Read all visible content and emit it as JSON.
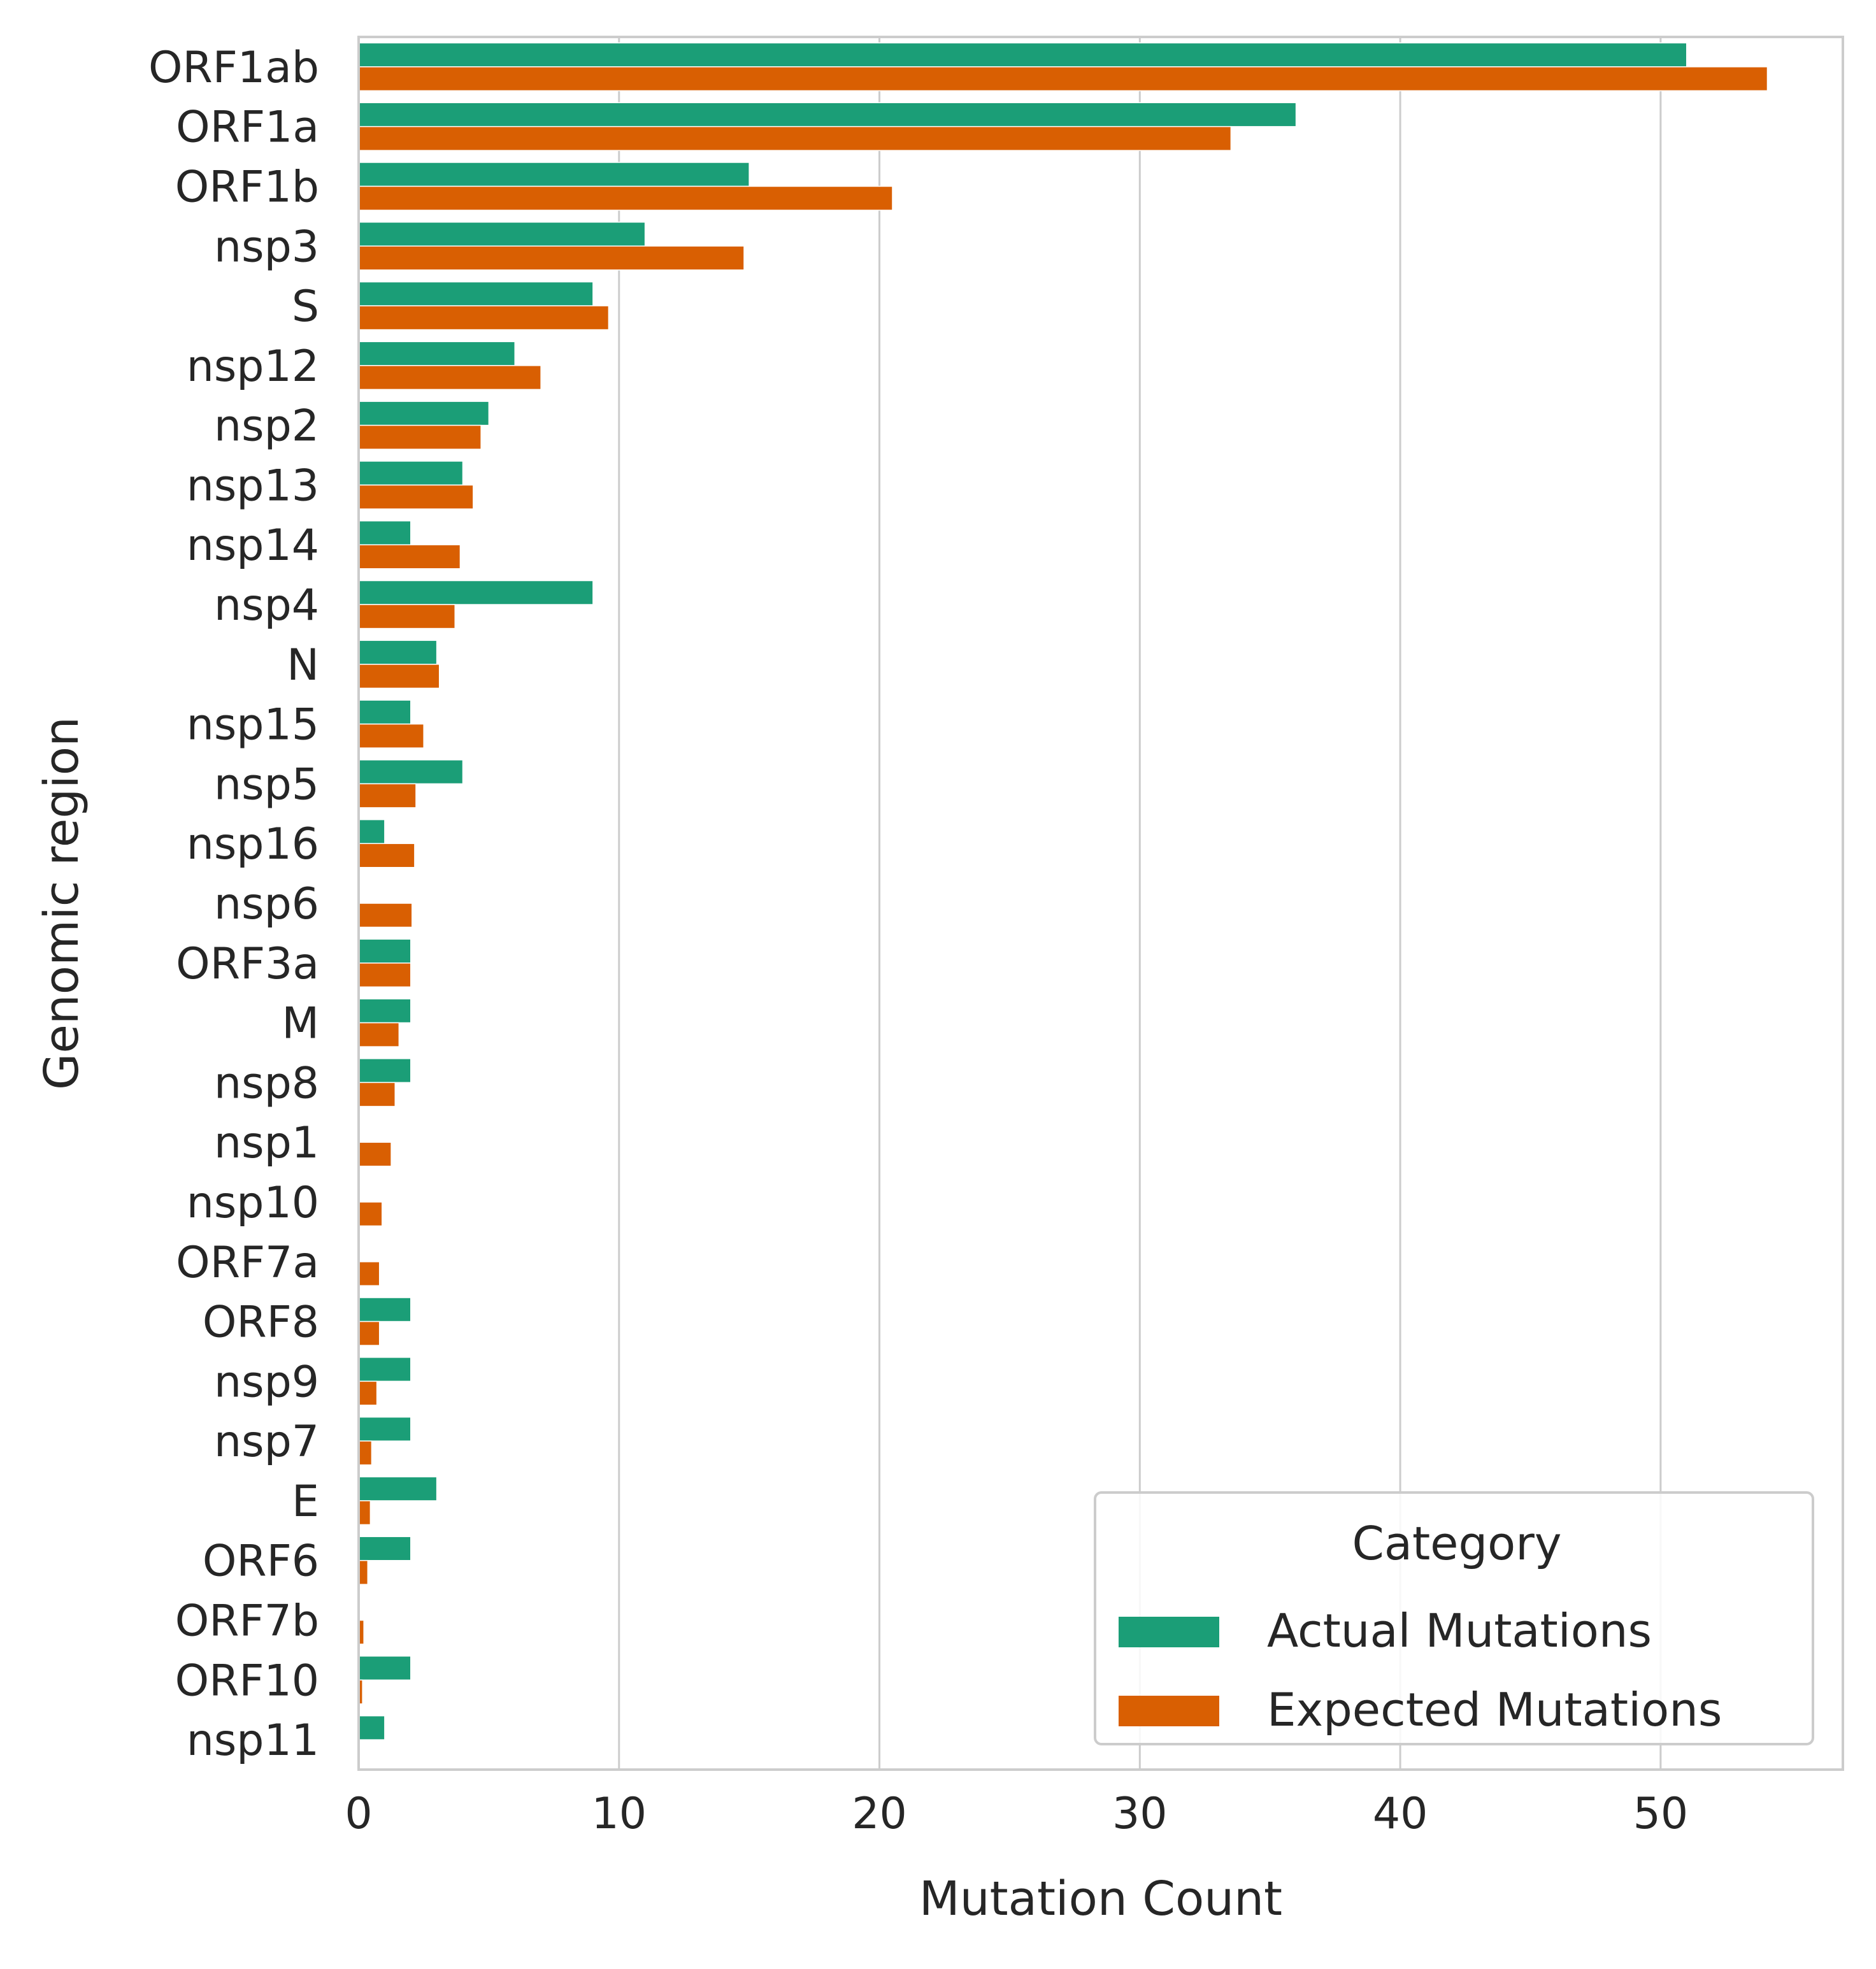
{
  "chart_data": {
    "type": "bar",
    "orientation": "horizontal",
    "xlabel": "Mutation Count",
    "ylabel": "Genomic region",
    "xlim": [
      0,
      57
    ],
    "xticks": [
      0,
      10,
      20,
      30,
      40,
      50
    ],
    "grid": "vertical",
    "legend": {
      "title": "Category",
      "placement": "lower-right"
    },
    "categories": [
      "ORF1ab",
      "ORF1a",
      "ORF1b",
      "nsp3",
      "S",
      "nsp12",
      "nsp2",
      "nsp13",
      "nsp14",
      "nsp4",
      "N",
      "nsp15",
      "nsp5",
      "nsp16",
      "nsp6",
      "ORF3a",
      "M",
      "nsp8",
      "nsp1",
      "nsp10",
      "ORF7a",
      "ORF8",
      "nsp9",
      "nsp7",
      "E",
      "ORF6",
      "ORF7b",
      "ORF10",
      "nsp11"
    ],
    "series": [
      {
        "name": "Actual Mutations",
        "color": "#1b9e77",
        "values": [
          51,
          36,
          15,
          11,
          9,
          6,
          5,
          4,
          2,
          9,
          3,
          2,
          4,
          1,
          0,
          2,
          2,
          2,
          0,
          0,
          0,
          2,
          2,
          2,
          3,
          2,
          0,
          2,
          1
        ]
      },
      {
        "name": "Expected Mutations",
        "color": "#d95f02",
        "values": [
          54.1,
          33.5,
          20.5,
          14.8,
          9.6,
          7.0,
          4.7,
          4.4,
          3.9,
          3.7,
          3.1,
          2.5,
          2.2,
          2.15,
          2.05,
          2.0,
          1.55,
          1.4,
          1.25,
          0.9,
          0.8,
          0.8,
          0.7,
          0.5,
          0.45,
          0.35,
          0.2,
          0.15,
          0
        ]
      }
    ]
  }
}
